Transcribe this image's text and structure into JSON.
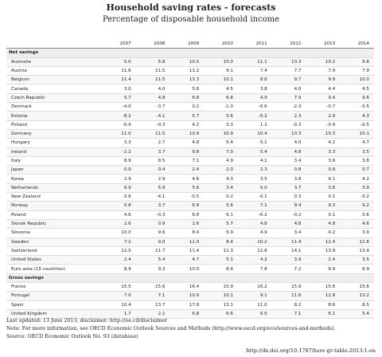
{
  "header": {
    "title": "Household saving rates - forecasts",
    "subtitle": "Percentage of disposable household income"
  },
  "table": {
    "columns": [
      "2007",
      "2008",
      "2009",
      "2010",
      "2011",
      "2012",
      "2013",
      "2014"
    ],
    "sections": [
      {
        "label": "Net savings",
        "rows": [
          {
            "country": "Australia",
            "values": [
              "5.0",
              "5.8",
              "10.0",
              "10.0",
              "11.1",
              "10.3",
              "10.2",
              "9.8"
            ]
          },
          {
            "country": "Austria",
            "values": [
              "11.6",
              "11.5",
              "11.2",
              "9.1",
              "7.4",
              "7.7",
              "7.9",
              "7.9"
            ]
          },
          {
            "country": "Belgium",
            "values": [
              "11.4",
              "11.5",
              "13.3",
              "10.1",
              "8.8",
              "9.7",
              "9.9",
              "10.0"
            ]
          },
          {
            "country": "Canada",
            "values": [
              "3.0",
              "4.0",
              "5.6",
              "4.5",
              "3.8",
              "4.0",
              "4.4",
              "4.5"
            ]
          },
          {
            "country": "Czech Republic",
            "values": [
              "5.7",
              "4.8",
              "6.8",
              "6.8",
              "4.9",
              "7.9",
              "9.4",
              "9.6"
            ]
          },
          {
            "country": "Denmark",
            "values": [
              "-4.0",
              "-3.7",
              "0.2",
              "-1.0",
              "-0.6",
              "-2.3",
              "-0.7",
              "-0.5"
            ]
          },
          {
            "country": "Estonia",
            "values": [
              "-8.2",
              "-4.1",
              "5.7",
              "0.6",
              "-0.2",
              "2.3",
              "2.9",
              "4.3"
            ]
          },
          {
            "country": "Finland",
            "values": [
              "-0.9",
              "-0.3",
              "4.2",
              "3.3",
              "1.2",
              "-0.3",
              "-0.4",
              "-0.5"
            ]
          },
          {
            "country": "Germany",
            "values": [
              "11.0",
              "11.5",
              "10.9",
              "10.9",
              "10.4",
              "10.3",
              "10.3",
              "10.1"
            ]
          },
          {
            "country": "Hungary",
            "values": [
              "3.3",
              "2.7",
              "4.8",
              "5.4",
              "5.1",
              "4.0",
              "4.2",
              "4.7"
            ]
          },
          {
            "country": "Ireland",
            "values": [
              "-2.2",
              "3.7",
              "9.8",
              "7.0",
              "5.4",
              "4.8",
              "3.3",
              "3.5"
            ]
          },
          {
            "country": "Italy",
            "values": [
              "8.9",
              "8.5",
              "7.1",
              "4.9",
              "4.1",
              "3.4",
              "3.9",
              "3.8"
            ]
          },
          {
            "country": "Japan",
            "values": [
              "0.9",
              "0.4",
              "2.4",
              "2.0",
              "2.3",
              "0.8",
              "0.9",
              "0.7"
            ]
          },
          {
            "country": "Korea",
            "values": [
              "2.9",
              "2.9",
              "4.6",
              "4.3",
              "3.5",
              "3.8",
              "4.1",
              "4.2"
            ]
          },
          {
            "country": "Netherlands",
            "values": [
              "6.9",
              "5.9",
              "5.6",
              "3.4",
              "5.0",
              "3.7",
              "3.8",
              "3.9"
            ]
          },
          {
            "country": "New Zealand",
            "values": [
              "-3.6",
              "-4.1",
              "-0.5",
              "0.2",
              "-0.1",
              "0.3",
              "0.1",
              "-0.2"
            ]
          },
          {
            "country": "Norway",
            "values": [
              "0.8",
              "3.7",
              "6.9",
              "5.6",
              "7.1",
              "9.4",
              "9.3",
              "9.2"
            ]
          },
          {
            "country": "Poland",
            "values": [
              "4.6",
              "-0.3",
              "6.8",
              "6.1",
              "-0.2",
              "-0.2",
              "0.1",
              "0.6"
            ]
          },
          {
            "country": "Slovak Republic",
            "values": [
              "2.6",
              "0.9",
              "1.6",
              "5.7",
              "4.8",
              "4.8",
              "4.8",
              "4.6"
            ]
          },
          {
            "country": "Slovenia",
            "values": [
              "10.0",
              "9.6",
              "8.4",
              "6.9",
              "4.9",
              "3.4",
              "4.2",
              "3.9"
            ]
          },
          {
            "country": "Sweden",
            "values": [
              "7.2",
              "9.0",
              "11.0",
              "8.4",
              "10.2",
              "11.4",
              "12.4",
              "11.6"
            ]
          },
          {
            "country": "Switzerland",
            "values": [
              "12.5",
              "11.7",
              "11.4",
              "11.3",
              "12.8",
              "14.1",
              "13.9",
              "13.4"
            ]
          },
          {
            "country": "United States",
            "values": [
              "2.4",
              "5.4",
              "4.7",
              "5.1",
              "4.2",
              "3.9",
              "2.4",
              "3.5"
            ]
          },
          {
            "country": "Euro area (15 countries)",
            "values": [
              "8.9",
              "9.3",
              "10.0",
              "8.4",
              "7.8",
              "7.2",
              "6.9",
              "6.9"
            ]
          }
        ]
      },
      {
        "label": "Gross savings",
        "rows": [
          {
            "country": "France",
            "values": [
              "15.5",
              "15.6",
              "16.4",
              "15.9",
              "16.2",
              "15.9",
              "15.6",
              "15.6"
            ]
          },
          {
            "country": "Portugal",
            "values": [
              "7.0",
              "7.1",
              "10.9",
              "10.1",
              "9.1",
              "11.6",
              "12.8",
              "13.2"
            ]
          },
          {
            "country": "Spain",
            "values": [
              "10.4",
              "13.7",
              "17.8",
              "13.1",
              "11.0",
              "8.2",
              "8.6",
              "8.5"
            ]
          },
          {
            "country": "United Kingdom",
            "values": [
              "1.7",
              "2.2",
              "6.8",
              "6.6",
              "6.5",
              "7.1",
              "6.1",
              "5.4"
            ]
          }
        ]
      }
    ]
  },
  "footer": {
    "updated": "Last updated: 13 June 2013; disclaimer: http://oe.cd/disclaimer",
    "note": "Note: For more information, see OECD Economic Outlook Sources and Methods (http://www.oecd.org/eco/sources-and-methods).",
    "source": "Source: OECD Economic Outlook No. 93 (database)",
    "doi": "http://dx.doi.org/10.1787/hssv-gr-table-2013-1-en"
  }
}
